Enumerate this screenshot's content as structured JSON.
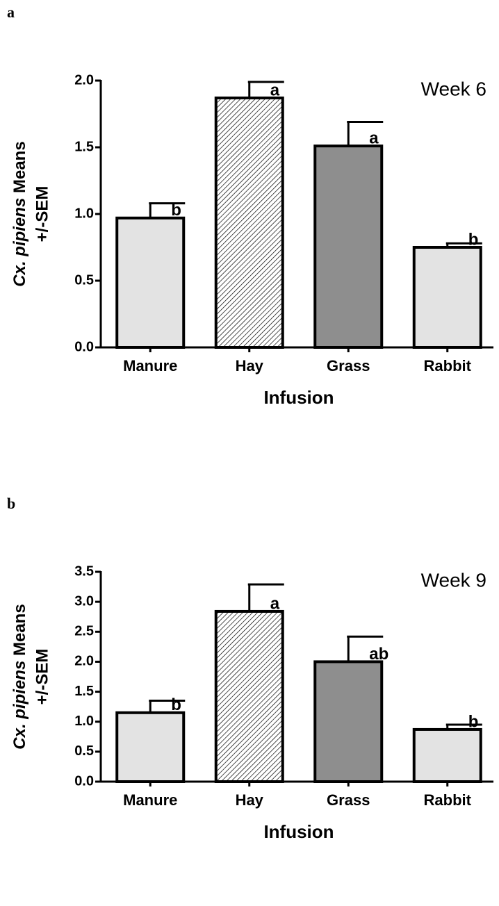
{
  "chart_data": [
    {
      "type": "bar",
      "panel": "a",
      "annotation": "Week 6",
      "ylabel_italic": "Cx. pipiens",
      "ylabel": "Means",
      "ylabel_line2": "+/-SEM",
      "xlabel": "Infusion",
      "categories": [
        "Manure",
        "Hay",
        "Grass",
        "Rabbit"
      ],
      "values": [
        0.97,
        1.87,
        1.51,
        0.75
      ],
      "errors": [
        0.11,
        0.12,
        0.18,
        0.03
      ],
      "letters": [
        "b",
        "a",
        "a",
        "b"
      ],
      "colors": [
        "#e3e3e3",
        "#ffffff",
        "#8e8e8e",
        "#e3e3e3"
      ],
      "hatch": [
        false,
        true,
        false,
        false
      ],
      "ylim": [
        0,
        2.0
      ],
      "yticks": [
        {
          "value": 0,
          "label": "0.0"
        },
        {
          "value": 0.5,
          "label": "0.5"
        },
        {
          "value": 1,
          "label": "1.0"
        },
        {
          "value": 1.5,
          "label": "1.5"
        },
        {
          "value": 2,
          "label": "2.0"
        }
      ]
    },
    {
      "type": "bar",
      "panel": "b",
      "annotation": "Week 9",
      "ylabel_italic": "Cx. pipiens",
      "ylabel": "Means",
      "ylabel_line2": "+/-SEM",
      "xlabel": "Infusion",
      "categories": [
        "Manure",
        "Hay",
        "Grass",
        "Rabbit"
      ],
      "values": [
        1.15,
        2.84,
        2.0,
        0.87
      ],
      "errors": [
        0.2,
        0.45,
        0.42,
        0.08
      ],
      "letters": [
        "b",
        "a",
        "ab",
        "b"
      ],
      "colors": [
        "#e3e3e3",
        "#ffffff",
        "#8e8e8e",
        "#e3e3e3"
      ],
      "hatch": [
        false,
        true,
        false,
        false
      ],
      "ylim": [
        0,
        3.5
      ],
      "yticks": [
        {
          "value": 0,
          "label": "0.0"
        },
        {
          "value": 0.5,
          "label": "0.5"
        },
        {
          "value": 1,
          "label": "1.0"
        },
        {
          "value": 1.5,
          "label": "1.5"
        },
        {
          "value": 2,
          "label": "2.0"
        },
        {
          "value": 2.5,
          "label": "2.5"
        },
        {
          "value": 3,
          "label": "3.0"
        },
        {
          "value": 3.5,
          "label": "3.5"
        }
      ]
    }
  ]
}
